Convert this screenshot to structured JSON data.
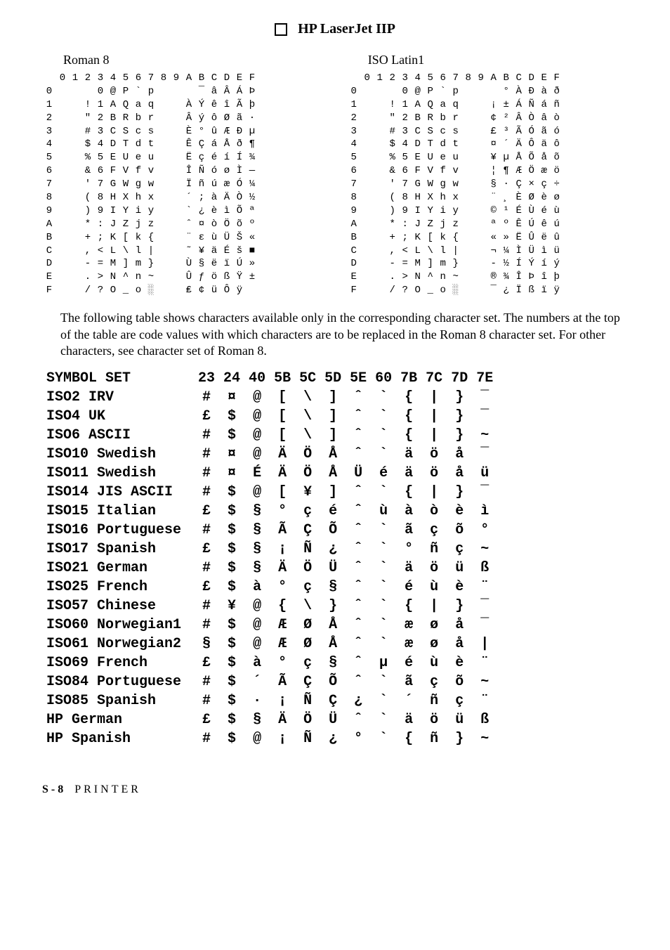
{
  "title": "HP LaserJet IIP",
  "left_set_label": "Roman 8",
  "right_set_label": "ISO Latin1",
  "col_headers": [
    "0",
    "1",
    "2",
    "3",
    "4",
    "5",
    "6",
    "7",
    "8",
    "9",
    "A",
    "B",
    "C",
    "D",
    "E",
    "F"
  ],
  "row_headers": [
    "0",
    "1",
    "2",
    "3",
    "4",
    "5",
    "6",
    "7",
    "8",
    "9",
    "A",
    "B",
    "C",
    "D",
    "E",
    "F"
  ],
  "roman8_grid": [
    [
      " ",
      " ",
      " ",
      " ",
      "0",
      "@",
      "P",
      "`",
      "p",
      " ",
      " ",
      " ",
      "¯",
      "â",
      "Â",
      "Á",
      "Þ"
    ],
    [
      " ",
      " ",
      " ",
      "!",
      "1",
      "A",
      "Q",
      "a",
      "q",
      " ",
      " ",
      "À",
      "Ý",
      "ê",
      "î",
      "Ã",
      "þ"
    ],
    [
      " ",
      " ",
      " ",
      "\"",
      "2",
      "B",
      "R",
      "b",
      "r",
      " ",
      " ",
      "Â",
      "ý",
      "ô",
      "Ø",
      "ã",
      "·"
    ],
    [
      " ",
      " ",
      " ",
      "#",
      "3",
      "C",
      "S",
      "c",
      "s",
      " ",
      " ",
      "È",
      "°",
      "û",
      "Æ",
      "Ð",
      "µ"
    ],
    [
      " ",
      " ",
      " ",
      "$",
      "4",
      "D",
      "T",
      "d",
      "t",
      " ",
      " ",
      "Ê",
      "Ç",
      "á",
      "Å",
      "ð",
      "¶"
    ],
    [
      " ",
      " ",
      " ",
      "%",
      "5",
      "E",
      "U",
      "e",
      "u",
      " ",
      " ",
      "Ë",
      "ç",
      "é",
      "í",
      "Í",
      "¾"
    ],
    [
      " ",
      " ",
      " ",
      "&",
      "6",
      "F",
      "V",
      "f",
      "v",
      " ",
      " ",
      "Î",
      "Ñ",
      "ó",
      "ø",
      "Ì",
      "—"
    ],
    [
      " ",
      " ",
      " ",
      "'",
      "7",
      "G",
      "W",
      "g",
      "w",
      " ",
      " ",
      "Ï",
      "ñ",
      "ú",
      "æ",
      "Ó",
      "¼"
    ],
    [
      " ",
      " ",
      " ",
      "(",
      "8",
      "H",
      "X",
      "h",
      "x",
      " ",
      " ",
      "´",
      ";",
      "à",
      "Ä",
      "Ò",
      "½"
    ],
    [
      " ",
      " ",
      " ",
      ")",
      "9",
      "I",
      "Y",
      "i",
      "y",
      " ",
      " ",
      "`",
      "¿",
      "è",
      "ì",
      "Õ",
      "ª"
    ],
    [
      " ",
      " ",
      " ",
      "*",
      ":",
      "J",
      "Z",
      "j",
      "z",
      " ",
      " ",
      "ˆ",
      "¤",
      "ò",
      "Ö",
      "õ",
      "º"
    ],
    [
      " ",
      " ",
      " ",
      "+",
      ";",
      "K",
      "[",
      "k",
      "{",
      " ",
      " ",
      "¨",
      "ε",
      "ù",
      "Ü",
      "Š",
      "«"
    ],
    [
      " ",
      " ",
      " ",
      ",",
      "<",
      "L",
      "\\",
      "l",
      "|",
      " ",
      " ",
      "˜",
      "¥",
      "ä",
      "É",
      "š",
      "■"
    ],
    [
      " ",
      " ",
      " ",
      "-",
      "=",
      "M",
      "]",
      "m",
      "}",
      " ",
      " ",
      "Ù",
      "§",
      "ë",
      "ï",
      "Ú",
      "»"
    ],
    [
      " ",
      " ",
      " ",
      ".",
      ">",
      "N",
      "^",
      "n",
      "~",
      " ",
      " ",
      "Û",
      "ƒ",
      "ö",
      "ß",
      "Ÿ",
      "±"
    ],
    [
      " ",
      " ",
      " ",
      "/",
      "?",
      "O",
      "_",
      "o",
      "░",
      " ",
      " ",
      "₤",
      "¢",
      "ü",
      "Ô",
      "ÿ",
      " "
    ]
  ],
  "latin1_grid": [
    [
      " ",
      " ",
      " ",
      " ",
      "0",
      "@",
      "P",
      "`",
      "p",
      " ",
      " ",
      " ",
      "°",
      "À",
      "Ð",
      "à",
      "ð"
    ],
    [
      " ",
      " ",
      " ",
      "!",
      "1",
      "A",
      "Q",
      "a",
      "q",
      " ",
      " ",
      "¡",
      "±",
      "Á",
      "Ñ",
      "á",
      "ñ"
    ],
    [
      " ",
      " ",
      " ",
      "\"",
      "2",
      "B",
      "R",
      "b",
      "r",
      " ",
      " ",
      "¢",
      "²",
      "Â",
      "Ò",
      "â",
      "ò"
    ],
    [
      " ",
      " ",
      " ",
      "#",
      "3",
      "C",
      "S",
      "c",
      "s",
      " ",
      " ",
      "£",
      "³",
      "Ã",
      "Ó",
      "ã",
      "ó"
    ],
    [
      " ",
      " ",
      " ",
      "$",
      "4",
      "D",
      "T",
      "d",
      "t",
      " ",
      " ",
      "¤",
      "´",
      "Ä",
      "Ô",
      "ä",
      "ô"
    ],
    [
      " ",
      " ",
      " ",
      "%",
      "5",
      "E",
      "U",
      "e",
      "u",
      " ",
      " ",
      "¥",
      "µ",
      "Å",
      "Õ",
      "å",
      "õ"
    ],
    [
      " ",
      " ",
      " ",
      "&",
      "6",
      "F",
      "V",
      "f",
      "v",
      " ",
      " ",
      "¦",
      "¶",
      "Æ",
      "Ö",
      "æ",
      "ö"
    ],
    [
      " ",
      " ",
      " ",
      "'",
      "7",
      "G",
      "W",
      "g",
      "w",
      " ",
      " ",
      "§",
      "·",
      "Ç",
      "×",
      "ç",
      "÷"
    ],
    [
      " ",
      " ",
      " ",
      "(",
      "8",
      "H",
      "X",
      "h",
      "x",
      " ",
      " ",
      "¨",
      "¸",
      "È",
      "Ø",
      "è",
      "ø"
    ],
    [
      " ",
      " ",
      " ",
      ")",
      "9",
      "I",
      "Y",
      "i",
      "y",
      " ",
      " ",
      "©",
      "¹",
      "É",
      "Ù",
      "é",
      "ù"
    ],
    [
      " ",
      " ",
      " ",
      "*",
      ":",
      "J",
      "Z",
      "j",
      "z",
      " ",
      " ",
      "ª",
      "º",
      "Ê",
      "Ú",
      "ê",
      "ú"
    ],
    [
      " ",
      " ",
      " ",
      "+",
      ";",
      "K",
      "[",
      "k",
      "{",
      " ",
      " ",
      "«",
      "»",
      "Ë",
      "Û",
      "ë",
      "û"
    ],
    [
      " ",
      " ",
      " ",
      ",",
      "<",
      "L",
      "\\",
      "l",
      "|",
      " ",
      " ",
      "¬",
      "¼",
      "Ì",
      "Ü",
      "ì",
      "ü"
    ],
    [
      " ",
      " ",
      " ",
      "-",
      "=",
      "M",
      "]",
      "m",
      "}",
      " ",
      " ",
      "­-",
      "½",
      "Í",
      "Ý",
      "í",
      "ý"
    ],
    [
      " ",
      " ",
      " ",
      ".",
      ">",
      "N",
      "^",
      "n",
      "~",
      " ",
      " ",
      "®",
      "¾",
      "Î",
      "Þ",
      "î",
      "þ"
    ],
    [
      " ",
      " ",
      " ",
      "/",
      "?",
      "O",
      "_",
      "o",
      "░",
      " ",
      " ",
      "¯",
      "¿",
      "Ï",
      "ß",
      "ï",
      "ÿ"
    ]
  ],
  "explain_text": "The following table shows characters available only in the corresponding character set. The numbers at the top of the table are code values with which characters are to be replaced in the Roman 8 character set. For other characters, see character set of Roman 8.",
  "symbol_header": [
    "SYMBOL SET",
    "23",
    "24",
    "40",
    "5B",
    "5C",
    "5D",
    "5E",
    "60",
    "7B",
    "7C",
    "7D",
    "7E"
  ],
  "symbol_rows": [
    [
      "ISO2 IRV",
      "#",
      "¤",
      "@",
      "[",
      "\\",
      "]",
      "ˆ",
      "`",
      "{",
      "|",
      "}",
      "‾"
    ],
    [
      "ISO4 UK",
      "£",
      "$",
      "@",
      "[",
      "\\",
      "]",
      "ˆ",
      "`",
      "{",
      "|",
      "}",
      "‾"
    ],
    [
      "ISO6 ASCII",
      "#",
      "$",
      "@",
      "[",
      "\\",
      "]",
      "ˆ",
      "`",
      "{",
      "|",
      "}",
      "~"
    ],
    [
      "ISO10 Swedish",
      "#",
      "¤",
      "@",
      "Ä",
      "Ö",
      "Å",
      "ˆ",
      "`",
      "ä",
      "ö",
      "å",
      "‾"
    ],
    [
      "ISO11 Swedish",
      "#",
      "¤",
      "É",
      "Ä",
      "Ö",
      "Å",
      "Ü",
      "é",
      "ä",
      "ö",
      "å",
      "ü"
    ],
    [
      "ISO14 JIS ASCII",
      "#",
      "$",
      "@",
      "[",
      "¥",
      "]",
      "ˆ",
      "`",
      "{",
      "|",
      "}",
      "‾"
    ],
    [
      "ISO15 Italian",
      "£",
      "$",
      "§",
      "°",
      "ç",
      "é",
      "ˆ",
      "ù",
      "à",
      "ò",
      "è",
      "ì"
    ],
    [
      "ISO16 Portuguese",
      "#",
      "$",
      "§",
      "Ã",
      "Ç",
      "Õ",
      "ˆ",
      "`",
      "ã",
      "ç",
      "õ",
      "°"
    ],
    [
      "ISO17 Spanish",
      "£",
      "$",
      "§",
      "¡",
      "Ñ",
      "¿",
      "ˆ",
      "`",
      "°",
      "ñ",
      "ç",
      "~"
    ],
    [
      "ISO21 German",
      "#",
      "$",
      "§",
      "Ä",
      "Ö",
      "Ü",
      "ˆ",
      "`",
      "ä",
      "ö",
      "ü",
      "ß"
    ],
    [
      "ISO25 French",
      "£",
      "$",
      "à",
      "°",
      "ç",
      "§",
      "ˆ",
      "`",
      "é",
      "ù",
      "è",
      "¨"
    ],
    [
      "ISO57 Chinese",
      "#",
      "¥",
      "@",
      "{",
      "\\",
      "}",
      "ˆ",
      "`",
      "{",
      "|",
      "}",
      "‾"
    ],
    [
      "ISO60 Norwegian1",
      "#",
      "$",
      "@",
      "Æ",
      "Ø",
      "Å",
      "ˆ",
      "`",
      "æ",
      "ø",
      "å",
      "‾"
    ],
    [
      "ISO61 Norwegian2",
      "§",
      "$",
      "@",
      "Æ",
      "Ø",
      "Å",
      "ˆ",
      "`",
      "æ",
      "ø",
      "å",
      "|"
    ],
    [
      "ISO69 French",
      "£",
      "$",
      "à",
      "°",
      "ç",
      "§",
      "ˆ",
      "µ",
      "é",
      "ù",
      "è",
      "¨"
    ],
    [
      "ISO84 Portuguese",
      "#",
      "$",
      "´",
      "Ã",
      "Ç",
      "Õ",
      "ˆ",
      "`",
      "ã",
      "ç",
      "õ",
      "~"
    ],
    [
      "ISO85 Spanish",
      "#",
      "$",
      "·",
      "¡",
      "Ñ",
      "Ç",
      "¿",
      "`",
      "´",
      "ñ",
      "ç",
      "¨"
    ],
    [
      "HP German",
      "£",
      "$",
      "§",
      "Ä",
      "Ö",
      "Ü",
      "ˆ",
      "`",
      "ä",
      "ö",
      "ü",
      "ß"
    ],
    [
      "HP Spanish",
      "#",
      "$",
      "@",
      "¡",
      "Ñ",
      "¿",
      "°",
      "`",
      "{",
      "ñ",
      "}",
      "~"
    ]
  ],
  "footer_page": "S - 8",
  "footer_label": "PRINTER"
}
